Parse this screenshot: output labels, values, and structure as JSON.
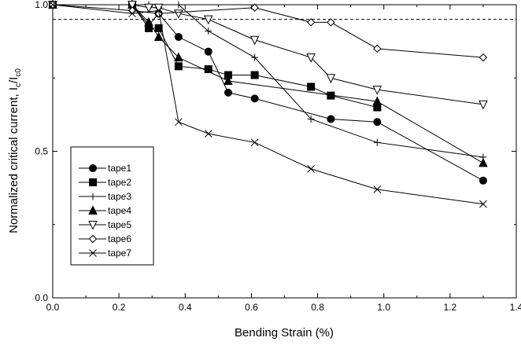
{
  "chart_data": {
    "type": "line",
    "xlabel": "Bending Strain (%)",
    "ylabel_main": "Normalized critical current,  I",
    "ylabel_sub1": "c",
    "ylabel_mid": "/I",
    "ylabel_sub2": "c0",
    "xlim": [
      0.0,
      1.4
    ],
    "ylim": [
      0.0,
      1.0
    ],
    "xticks": [
      {
        "value": 0.0,
        "label": "0.0"
      },
      {
        "value": 0.2,
        "label": "0.2"
      },
      {
        "value": 0.4,
        "label": "0.4"
      },
      {
        "value": 0.6,
        "label": "0.6"
      },
      {
        "value": 0.8,
        "label": "0.8"
      },
      {
        "value": 1.0,
        "label": "1.0"
      },
      {
        "value": 1.2,
        "label": "1.2"
      },
      {
        "value": 1.4,
        "label": "1.4"
      }
    ],
    "yticks": [
      {
        "value": 0.0,
        "label": "0.0"
      },
      {
        "value": 0.5,
        "label": "0.5"
      },
      {
        "value": 1.0,
        "label": "1.0"
      }
    ],
    "reference_line": {
      "y": 0.95,
      "style": "dashed"
    },
    "grid": false,
    "legend_position": "bottom-left",
    "series": [
      {
        "name": "tape1",
        "marker": "circle-filled",
        "x": [
          0.0,
          0.24,
          0.29,
          0.32,
          0.38,
          0.47,
          0.53,
          0.61,
          0.84,
          0.98,
          1.3
        ],
        "y": [
          1.0,
          1.0,
          0.93,
          0.97,
          0.89,
          0.84,
          0.7,
          0.68,
          0.61,
          0.6,
          0.4
        ]
      },
      {
        "name": "tape2",
        "marker": "square-filled",
        "x": [
          0.0,
          0.24,
          0.29,
          0.32,
          0.38,
          0.47,
          0.53,
          0.61,
          0.78,
          0.84,
          0.98
        ],
        "y": [
          1.0,
          1.0,
          0.92,
          0.92,
          0.79,
          0.78,
          0.76,
          0.76,
          0.72,
          0.69,
          0.65
        ]
      },
      {
        "name": "tape3",
        "marker": "plus",
        "x": [
          0.0,
          0.24,
          0.29,
          0.38,
          0.47,
          0.61,
          0.78,
          0.98,
          1.3
        ],
        "y": [
          1.0,
          1.0,
          1.0,
          1.0,
          0.91,
          0.82,
          0.61,
          0.53,
          0.48
        ]
      },
      {
        "name": "tape4",
        "marker": "triangle-filled",
        "x": [
          0.0,
          0.24,
          0.29,
          0.32,
          0.38,
          0.53,
          0.98,
          1.3
        ],
        "y": [
          1.0,
          1.0,
          0.94,
          0.89,
          0.82,
          0.74,
          0.67,
          0.46
        ]
      },
      {
        "name": "tape5",
        "marker": "triangle-down-open",
        "x": [
          0.0,
          0.24,
          0.29,
          0.32,
          0.38,
          0.47,
          0.61,
          0.78,
          0.84,
          0.98,
          1.3
        ],
        "y": [
          1.0,
          1.0,
          0.99,
          0.99,
          0.97,
          0.95,
          0.88,
          0.82,
          0.75,
          0.71,
          0.66
        ]
      },
      {
        "name": "tape6",
        "marker": "diamond-open",
        "x": [
          0.0,
          0.24,
          0.32,
          0.61,
          0.78,
          0.84,
          0.98,
          1.3
        ],
        "y": [
          1.0,
          0.98,
          0.97,
          0.99,
          0.94,
          0.94,
          0.85,
          0.82
        ]
      },
      {
        "name": "tape7",
        "marker": "x",
        "x": [
          0.0,
          0.24,
          0.32,
          0.38,
          0.47,
          0.61,
          0.78,
          0.98,
          1.3
        ],
        "y": [
          1.0,
          0.97,
          0.98,
          0.6,
          0.56,
          0.53,
          0.44,
          0.37,
          0.32
        ]
      }
    ]
  }
}
